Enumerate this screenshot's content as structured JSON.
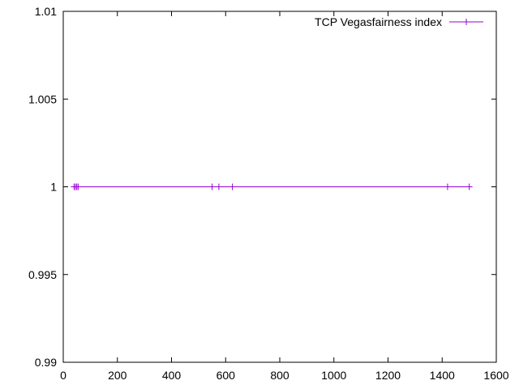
{
  "chart_data": {
    "type": "line",
    "title": "",
    "xlabel": "",
    "ylabel": "",
    "xlim": [
      0,
      1600
    ],
    "ylim": [
      0.99,
      1.01
    ],
    "x_ticks": [
      0,
      200,
      400,
      600,
      800,
      1000,
      1200,
      1400,
      1600
    ],
    "x_tick_labels": [
      "0",
      "200",
      "400",
      "600",
      "800",
      "1000",
      "1200",
      "1400",
      "1600"
    ],
    "y_ticks": [
      0.99,
      0.995,
      1,
      1.005,
      1.01
    ],
    "y_tick_labels": [
      "0.99",
      "0.995",
      "1",
      "1.005",
      "1.01"
    ],
    "grid": false,
    "legend_position": "top-right",
    "series": [
      {
        "name": "TCP Vegasfairness index",
        "color": "#9400d3",
        "marker": "plus",
        "x": [
          40,
          45,
          50,
          55,
          550,
          575,
          625,
          1420,
          1500
        ],
        "y": [
          1,
          1,
          1,
          1,
          1,
          1,
          1,
          1,
          1
        ]
      }
    ]
  }
}
